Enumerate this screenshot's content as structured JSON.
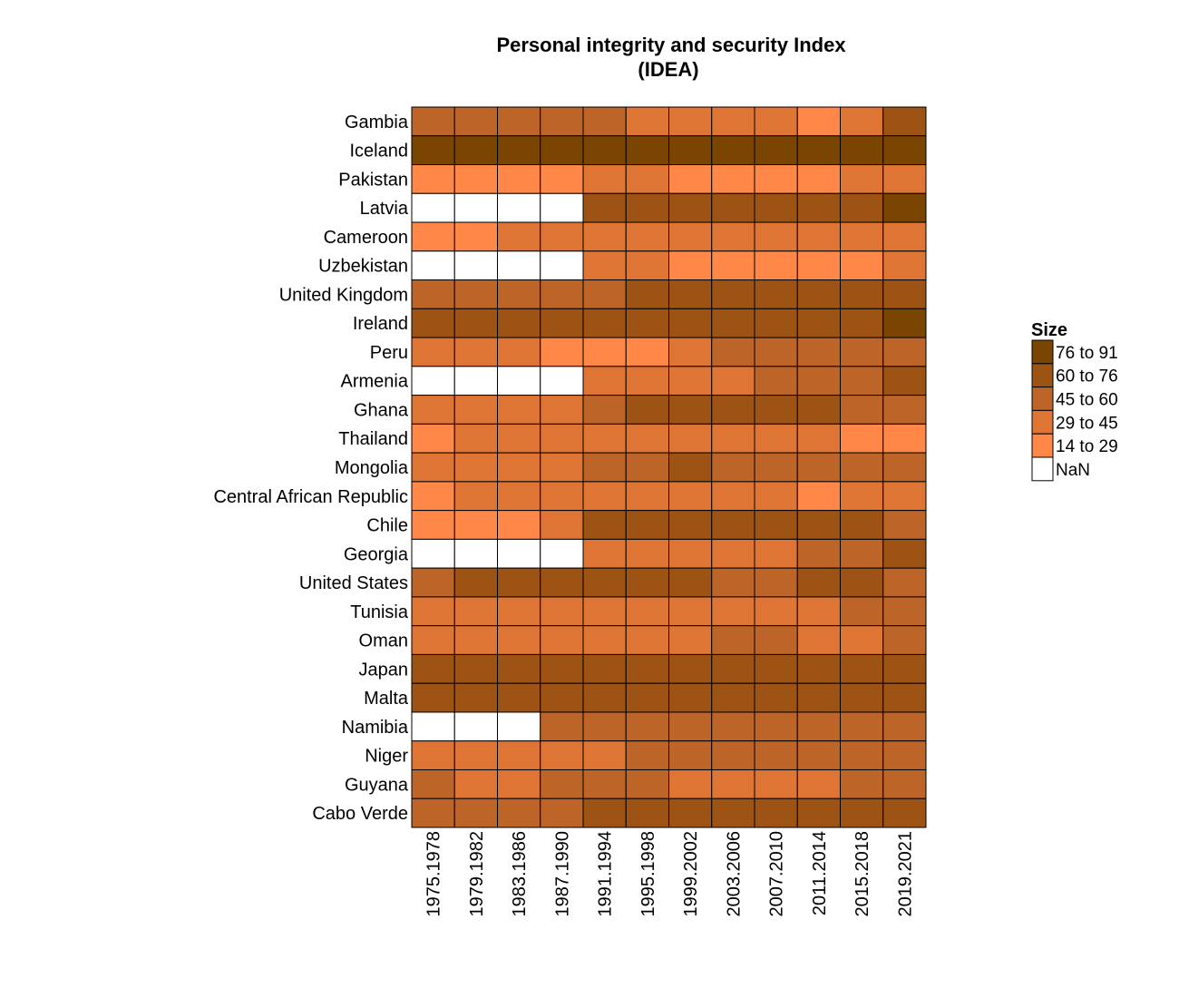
{
  "chart_data": {
    "type": "heatmap",
    "title_lines": [
      "Personal integrity and security Index",
      "(IDEA)"
    ],
    "x_categories": [
      "1975.1978",
      "1979.1982",
      "1983.1986",
      "1987.1990",
      "1991.1994",
      "1995.1998",
      "1999.2002",
      "2003.2006",
      "2007.2010",
      "2011.2014",
      "2015.2018",
      "2019.2021"
    ],
    "y_categories": [
      "Gambia",
      "Iceland",
      "Pakistan",
      "Latvia",
      "Cameroon",
      "Uzbekistan",
      "United Kingdom",
      "Ireland",
      "Peru",
      "Armenia",
      "Ghana",
      "Thailand",
      "Mongolia",
      "Central African Republic",
      "Chile",
      "Georgia",
      "United States",
      "Tunisia",
      "Oman",
      "Japan",
      "Malta",
      "Namibia",
      "Niger",
      "Guyana",
      "Cabo Verde"
    ],
    "value_bins": [
      {
        "label": "76 to 91",
        "color": "#7a4500"
      },
      {
        "label": "60 to 76",
        "color": "#9c5314"
      },
      {
        "label": "45 to 60",
        "color": "#bd6428"
      },
      {
        "label": "29 to 45",
        "color": "#df7534"
      },
      {
        "label": "14 to 29",
        "color": "#ff8848"
      },
      {
        "label": "NaN",
        "color": "#ffffff"
      }
    ],
    "legend_title": "Size",
    "legend_position": "right",
    "values": [
      [
        50,
        50,
        50,
        50,
        52,
        38,
        38,
        38,
        38,
        25,
        38,
        65
      ],
      [
        85,
        85,
        85,
        85,
        85,
        85,
        85,
        85,
        85,
        85,
        85,
        85
      ],
      [
        22,
        22,
        22,
        22,
        35,
        35,
        22,
        22,
        22,
        22,
        35,
        38
      ],
      [
        null,
        null,
        null,
        null,
        65,
        65,
        65,
        65,
        65,
        65,
        65,
        82
      ],
      [
        22,
        22,
        35,
        35,
        38,
        38,
        38,
        38,
        38,
        38,
        38,
        38
      ],
      [
        null,
        null,
        null,
        null,
        35,
        35,
        22,
        22,
        22,
        22,
        22,
        35
      ],
      [
        52,
        52,
        52,
        52,
        52,
        65,
        65,
        65,
        65,
        65,
        65,
        65
      ],
      [
        65,
        65,
        65,
        65,
        65,
        65,
        65,
        65,
        65,
        65,
        65,
        82
      ],
      [
        38,
        38,
        38,
        22,
        22,
        22,
        38,
        52,
        52,
        52,
        52,
        52
      ],
      [
        null,
        null,
        null,
        null,
        38,
        38,
        38,
        38,
        52,
        52,
        52,
        65
      ],
      [
        38,
        38,
        38,
        38,
        52,
        65,
        65,
        65,
        65,
        65,
        52,
        52
      ],
      [
        22,
        38,
        38,
        38,
        38,
        38,
        38,
        38,
        38,
        38,
        22,
        22
      ],
      [
        38,
        38,
        38,
        38,
        52,
        52,
        65,
        52,
        52,
        52,
        52,
        52
      ],
      [
        22,
        38,
        38,
        38,
        38,
        38,
        38,
        38,
        38,
        22,
        38,
        38
      ],
      [
        22,
        22,
        22,
        38,
        65,
        65,
        65,
        65,
        65,
        65,
        65,
        52
      ],
      [
        null,
        null,
        null,
        null,
        38,
        38,
        38,
        38,
        38,
        52,
        52,
        65
      ],
      [
        52,
        65,
        65,
        65,
        65,
        65,
        65,
        52,
        52,
        65,
        65,
        52
      ],
      [
        38,
        38,
        38,
        38,
        38,
        38,
        38,
        38,
        38,
        38,
        52,
        52
      ],
      [
        38,
        38,
        38,
        38,
        38,
        38,
        38,
        52,
        52,
        38,
        38,
        52
      ],
      [
        65,
        65,
        65,
        65,
        65,
        65,
        65,
        65,
        65,
        65,
        65,
        65
      ],
      [
        65,
        65,
        65,
        65,
        65,
        65,
        65,
        65,
        65,
        65,
        65,
        65
      ],
      [
        null,
        null,
        null,
        52,
        52,
        52,
        52,
        52,
        52,
        52,
        52,
        52
      ],
      [
        38,
        38,
        38,
        38,
        38,
        52,
        52,
        52,
        52,
        52,
        52,
        52
      ],
      [
        52,
        38,
        38,
        52,
        52,
        52,
        38,
        38,
        38,
        38,
        52,
        52
      ],
      [
        52,
        52,
        52,
        52,
        65,
        65,
        65,
        65,
        65,
        65,
        65,
        65
      ]
    ]
  }
}
